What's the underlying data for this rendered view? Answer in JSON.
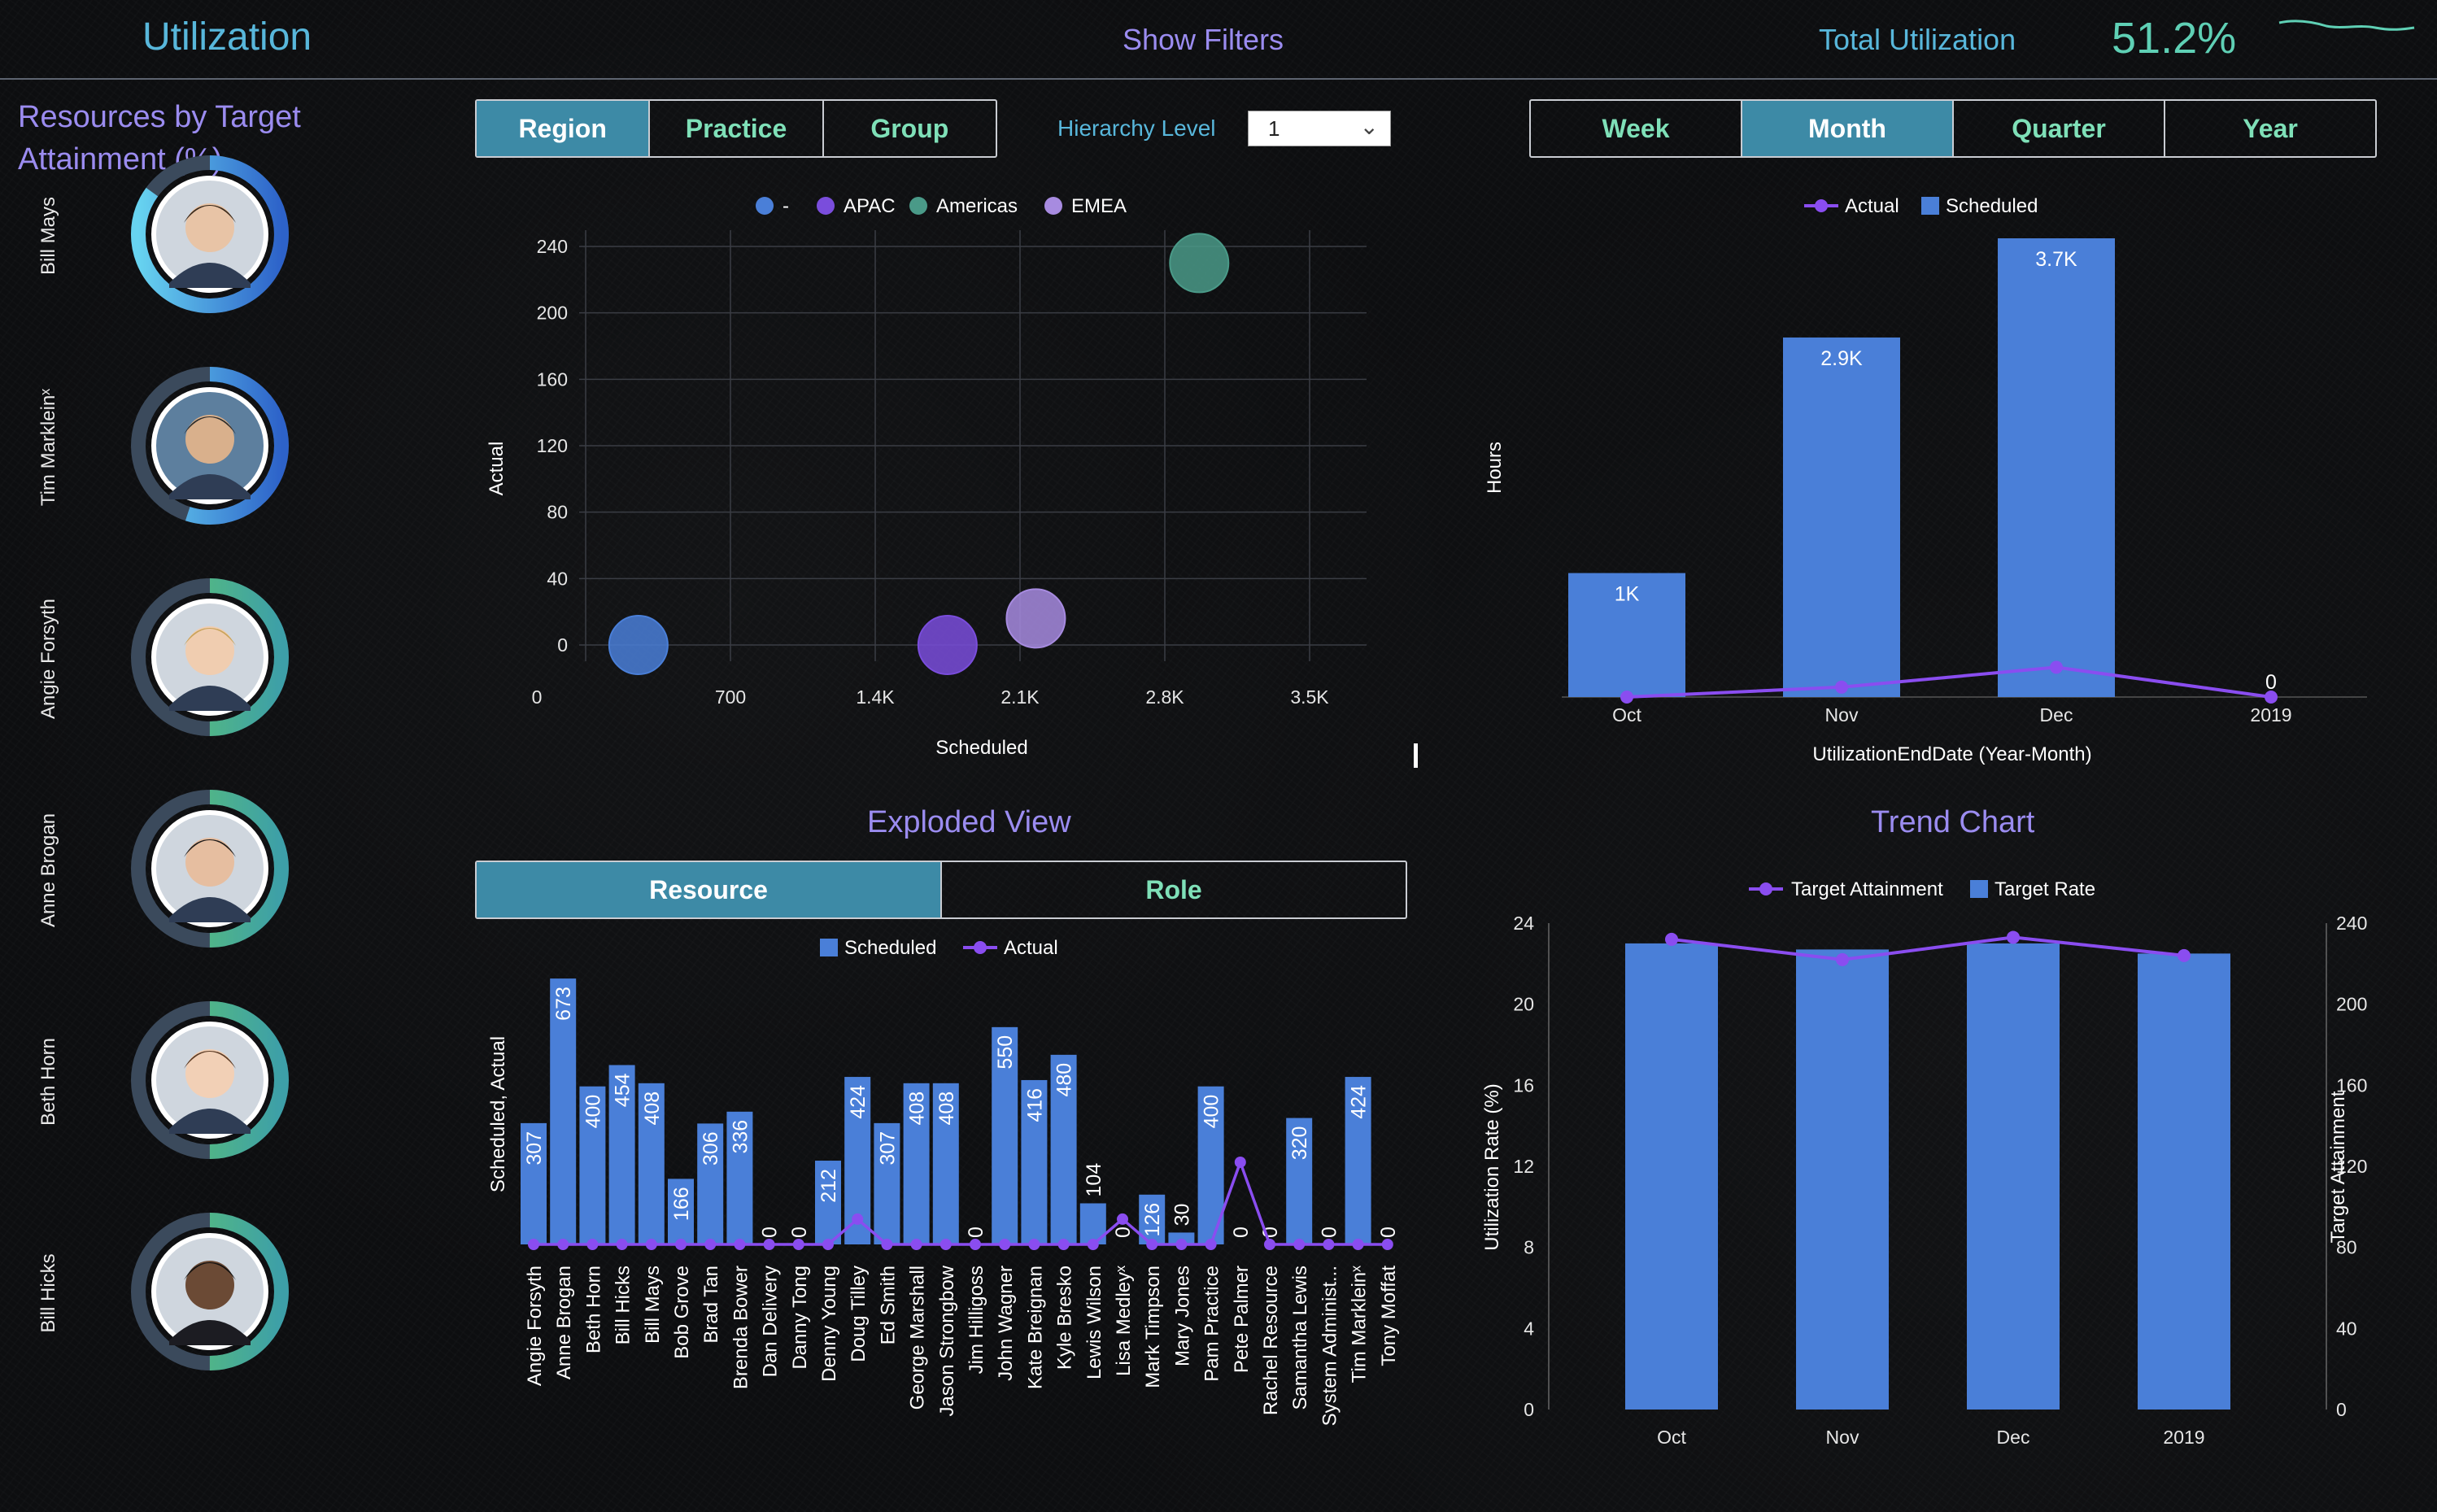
{
  "header": {
    "title": "Utilization",
    "show_filters": "Show Filters",
    "total_label": "Total Utilization",
    "total_value": "51.2%"
  },
  "sidebar": {
    "title": "Resources by Target Attainment (%)",
    "resources": [
      {
        "name": "Bill Mays",
        "ring_color": "#4a90e2",
        "attainment": 0.85
      },
      {
        "name": "Tim Markleinˣ",
        "ring_color": "#4a90e2",
        "attainment": 0.55
      },
      {
        "name": "Angie Forsyth",
        "ring_color": "#5cb85c",
        "attainment": 0.5
      },
      {
        "name": "Anne Brogan",
        "ring_color": "#5cb85c",
        "attainment": 0.5
      },
      {
        "name": "Beth Horn",
        "ring_color": "#5cb85c",
        "attainment": 0.5
      },
      {
        "name": "Bill Hicks",
        "ring_color": "#5cb85c",
        "attainment": 0.5
      }
    ]
  },
  "grouping_toggle": [
    "Region",
    "Practice",
    "Group"
  ],
  "grouping_active": "Region",
  "hierarchy": {
    "label": "Hierarchy Level",
    "value": "1"
  },
  "period_toggle": [
    "Week",
    "Month",
    "Quarter",
    "Year"
  ],
  "period_active": "Month",
  "view_toggle": [
    "Resource",
    "Role"
  ],
  "view_active": "Resource",
  "sections": {
    "exploded_view": "Exploded View",
    "trend_chart": "Trend Chart"
  },
  "colors": {
    "bar": "#4a7fd8",
    "line": "#8a4df0",
    "accent_teal": "#5fd0b5",
    "accent_blue": "#58b7db",
    "accent_purple": "#9b8cf0"
  },
  "chart_data": [
    {
      "id": "scatter",
      "type": "scatter",
      "xlabel": "Scheduled",
      "ylabel": "Actual",
      "xticks": [
        "0",
        "700",
        "1.4K",
        "2.1K",
        "2.8K",
        "3.5K"
      ],
      "yticks": [
        "0",
        "40",
        "80",
        "120",
        "160",
        "200",
        "240"
      ],
      "xlim": [
        0,
        3500
      ],
      "ylim": [
        0,
        240
      ],
      "legend": [
        "-",
        "APAC",
        "Americas",
        "EMEA"
      ],
      "legend_colors": [
        "#4a7fd8",
        "#7a4ddc",
        "#4a9a88",
        "#a78be0"
      ],
      "points": [
        {
          "series": "-",
          "x": 460,
          "y": 0
        },
        {
          "series": "APAC",
          "x": 1860,
          "y": 0
        },
        {
          "series": "EMEA",
          "x": 2260,
          "y": 16
        },
        {
          "series": "Americas",
          "x": 3000,
          "y": 230
        }
      ]
    },
    {
      "id": "monthly",
      "type": "bar",
      "xlabel": "UtilizationEndDate (Year-Month)",
      "ylabel": "Hours",
      "categories": [
        "Oct",
        "Nov",
        "Dec",
        "2019"
      ],
      "legend": [
        "Actual",
        "Scheduled"
      ],
      "series": [
        {
          "name": "Scheduled",
          "values": [
            1000,
            2900,
            3700,
            0
          ],
          "labels": [
            "1K",
            "2.9K",
            "3.7K",
            "0"
          ]
        },
        {
          "name": "Actual",
          "values": [
            0,
            50,
            150,
            0
          ]
        }
      ],
      "ylim": [
        0,
        3700
      ]
    },
    {
      "id": "exploded",
      "type": "bar",
      "ylabel": "Scheduled, Actual",
      "legend": [
        "Scheduled",
        "Actual"
      ],
      "categories": [
        "Angie Forsyth",
        "Anne Brogan",
        "Beth Horn",
        "Bill Hicks",
        "Bill Mays",
        "Bob Grove",
        "Brad Tan",
        "Brenda Bower",
        "Dan Delivery",
        "Danny Tong",
        "Denny Young",
        "Doug Tilley",
        "Ed Smith",
        "George Marshall",
        "Jason Strongbow",
        "Jim Hilligoss",
        "John Wagner",
        "Kate Breignan",
        "Kyle Bresko",
        "Lewis Wilson",
        "Lisa Medleyˣ",
        "Mark Timpson",
        "Mary Jones",
        "Pam Practice",
        "Pete Palmer",
        "Rachel Resource",
        "Samantha Lewis",
        "System Administ...",
        "Tim Markleinˣ",
        "Tony Moffat"
      ],
      "series": [
        {
          "name": "Scheduled",
          "values": [
            307,
            673,
            400,
            454,
            408,
            166,
            306,
            336,
            0,
            0,
            212,
            424,
            307,
            408,
            408,
            0,
            550,
            416,
            480,
            104,
            0,
            126,
            30,
            400,
            0,
            0,
            320,
            0,
            424,
            0
          ]
        },
        {
          "name": "Actual",
          "values": [
            0,
            0,
            0,
            0,
            0,
            0,
            0,
            0,
            0,
            0,
            0,
            40,
            0,
            0,
            0,
            0,
            0,
            0,
            0,
            0,
            40,
            0,
            0,
            0,
            130,
            0,
            0,
            0,
            0,
            0
          ]
        }
      ],
      "ylim": [
        0,
        700
      ]
    },
    {
      "id": "trend",
      "type": "bar",
      "ylabel": "Utilization Rate (%)",
      "y2label": "Target Attainment",
      "categories": [
        "Oct",
        "Nov",
        "Dec",
        "2019"
      ],
      "legend": [
        "Target Attainment",
        "Target Rate"
      ],
      "yticks": [
        "0",
        "4",
        "8",
        "12",
        "16",
        "20",
        "24"
      ],
      "y2ticks": [
        "0",
        "40",
        "80",
        "120",
        "160",
        "200",
        "240"
      ],
      "ylim": [
        0,
        24
      ],
      "y2lim": [
        0,
        240
      ],
      "series": [
        {
          "name": "Target Rate",
          "axis": "left",
          "values": [
            23,
            22.7,
            23,
            22.5
          ]
        },
        {
          "name": "Target Attainment",
          "axis": "right",
          "values": [
            232,
            222,
            233,
            224
          ]
        }
      ]
    }
  ]
}
